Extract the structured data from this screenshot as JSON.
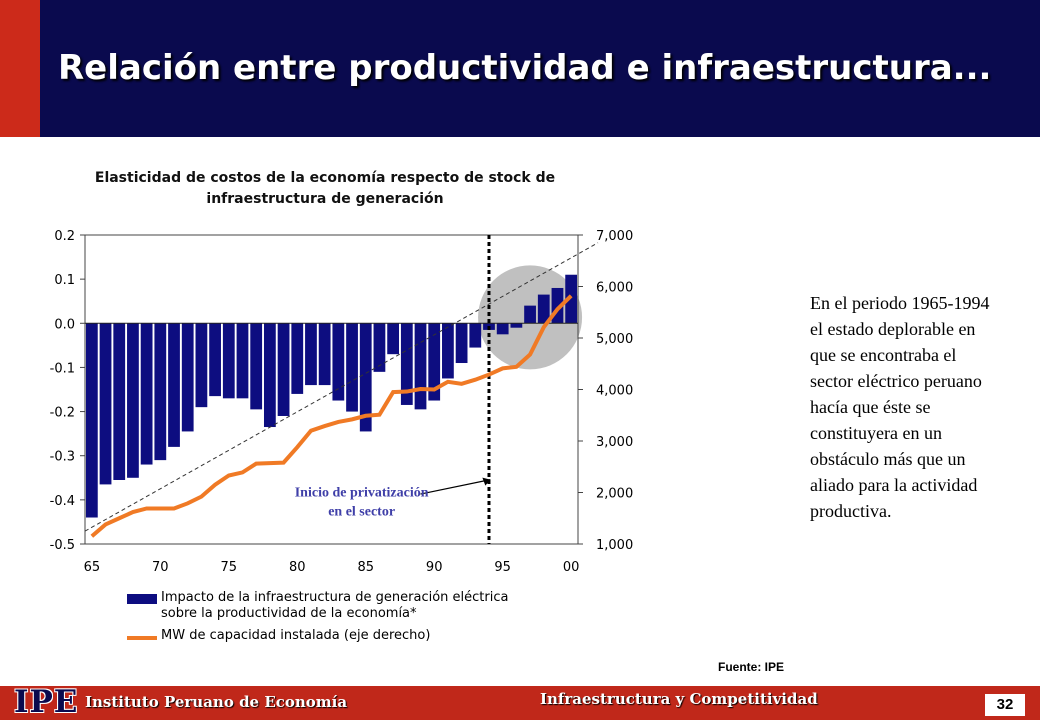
{
  "slide": {
    "title": "Relación entre productividad e infraestructura...",
    "side_text": "En  el periodo 1965-1994 el estado deplorable en que se encontraba el sector eléctrico peruano hacía que éste se constituyera en un obstáculo más que un aliado para la actividad productiva.",
    "source": "Fuente: IPE",
    "footer_logo": "IPE",
    "footer_org": "Instituto Peruano de Economía",
    "footer_topic": "Infraestructura y Competitividad",
    "page_number": "32"
  },
  "chart_data": {
    "type": "bar",
    "title": "Elasticidad de costos de la economía respecto de stock de infraestructura de generación",
    "x_tick_labels": [
      "65",
      "70",
      "75",
      "80",
      "85",
      "90",
      "95",
      "00"
    ],
    "x_years": [
      1965,
      1966,
      1967,
      1968,
      1969,
      1970,
      1971,
      1972,
      1973,
      1974,
      1975,
      1976,
      1977,
      1978,
      1979,
      1980,
      1981,
      1982,
      1983,
      1984,
      1985,
      1986,
      1987,
      1988,
      1989,
      1990,
      1991,
      1992,
      1993,
      1994,
      1995,
      1996,
      1997,
      1998,
      1999,
      2000
    ],
    "y_left_ticks": [
      "0.2",
      "0.1",
      "0.0",
      "-0.1",
      "-0.2",
      "-0.3",
      "-0.4",
      "-0.5"
    ],
    "y_left_lim": [
      -0.5,
      0.2
    ],
    "y_right_ticks": [
      "7,000",
      "6,000",
      "5,000",
      "4,000",
      "3,000",
      "2,000",
      "1,000"
    ],
    "y_right_lim": [
      1000,
      7000
    ],
    "series": [
      {
        "name": "Impacto de la infraestructura de generación eléctrica sobre la productividad de la economía*",
        "axis": "left",
        "kind": "bar",
        "color": "#0d0d80",
        "values": [
          -0.44,
          -0.365,
          -0.355,
          -0.35,
          -0.32,
          -0.31,
          -0.28,
          -0.245,
          -0.19,
          -0.165,
          -0.17,
          -0.17,
          -0.195,
          -0.235,
          -0.21,
          -0.16,
          -0.14,
          -0.14,
          -0.175,
          -0.2,
          -0.245,
          -0.11,
          -0.07,
          -0.185,
          -0.195,
          -0.175,
          -0.125,
          -0.09,
          -0.055,
          -0.015,
          -0.025,
          -0.01,
          0.04,
          0.065,
          0.08,
          0.11
        ]
      },
      {
        "name": "MW de capacidad instalada (eje derecho)",
        "axis": "right",
        "kind": "line",
        "color": "#f07a25",
        "values": [
          1150,
          1380,
          1500,
          1620,
          1690,
          1690,
          1690,
          1790,
          1920,
          2150,
          2330,
          2390,
          2560,
          2570,
          2580,
          2880,
          3200,
          3290,
          3370,
          3420,
          3490,
          3510,
          3950,
          3960,
          4010,
          4000,
          4150,
          4110,
          4190,
          4290,
          4410,
          4440,
          4680,
          5210,
          5560,
          5820
        ]
      }
    ],
    "trend_line": {
      "style": "dashed",
      "axis": "right",
      "from": [
        1965,
        1250
      ],
      "to": [
        2001,
        6500
      ]
    },
    "marker": {
      "year": 1994,
      "style": "dotted vertical"
    },
    "highlight": {
      "shape": "circle",
      "color": "#c0c0c0",
      "around_years": "1995-2000"
    },
    "annotation": "Inicio de privatización\nen el sector",
    "legend_position": "bottom"
  }
}
